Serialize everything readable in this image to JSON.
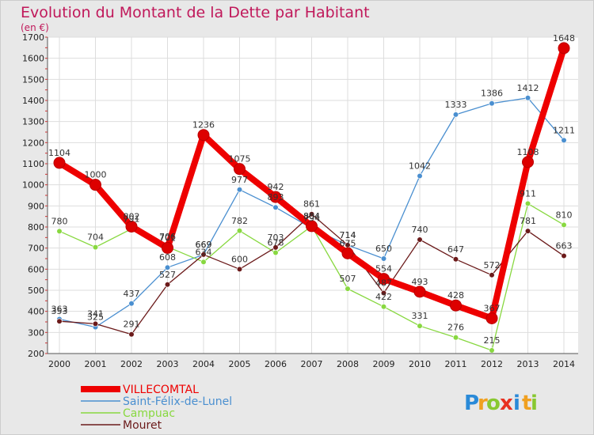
{
  "chart_data": {
    "type": "line",
    "title": "Evolution du Montant de la Dette par Habitant",
    "subtitle": "(en €)",
    "xlabel": "",
    "ylabel": "",
    "x": [
      "2000",
      "2001",
      "2002",
      "2003",
      "2004",
      "2005",
      "2006",
      "2007",
      "2008",
      "2009",
      "2010",
      "2011",
      "2012",
      "2013",
      "2014"
    ],
    "ylim": [
      200,
      1700
    ],
    "yticks": [
      200,
      300,
      400,
      500,
      600,
      700,
      800,
      900,
      1000,
      1100,
      1200,
      1300,
      1400,
      1500,
      1600,
      1700
    ],
    "grid": true,
    "legend_position": "bottom-left",
    "series": [
      {
        "name": "VILLECOMTAL",
        "color": "#ee0000",
        "values": [
          1104,
          1000,
          802,
          701,
          1236,
          1075,
          942,
          804,
          675,
          554,
          493,
          428,
          367,
          1108,
          1648
        ]
      },
      {
        "name": "Saint-Félix-de-Lunel",
        "color": "#4a8fd0",
        "values": [
          363,
          325,
          437,
          608,
          669,
          977,
          893,
          794,
          714,
          650,
          1042,
          1333,
          1386,
          1412,
          1211
        ]
      },
      {
        "name": "Campuac",
        "color": "#88d840",
        "values": [
          780,
          704,
          791,
          706,
          634,
          782,
          678,
          804,
          507,
          422,
          331,
          276,
          215,
          911,
          810
        ]
      },
      {
        "name": "Mouret",
        "color": "#6b1a1a",
        "values": [
          353,
          341,
          291,
          527,
          669,
          600,
          703,
          861,
          714,
          487,
          740,
          647,
          572,
          781,
          663
        ]
      }
    ],
    "data_labels": [
      [
        "1104",
        "1000",
        "802",
        "701",
        "1236",
        "1075",
        "942",
        "804",
        "675",
        "554",
        "493",
        "428",
        "367",
        "1108",
        "1648"
      ],
      [
        "363",
        "325",
        "437",
        "608",
        "669",
        "977",
        "893",
        "794",
        "714",
        "650",
        "1042",
        "1333",
        "1386",
        "1412",
        "1211"
      ],
      [
        "780",
        "704",
        "791",
        "706",
        "634",
        "782",
        "678",
        "804",
        "507",
        "422",
        "331",
        "276",
        "215",
        "911",
        "810"
      ],
      [
        "353",
        "341",
        "291",
        "527",
        "669",
        "600",
        "703",
        "861",
        "714",
        "487",
        "740",
        "647",
        "572",
        "781",
        "663"
      ]
    ]
  },
  "logo": {
    "letters": [
      "P",
      "r",
      "o",
      "x",
      "i",
      "t",
      "i"
    ],
    "colors": [
      "#2a8ad8",
      "#f0a020",
      "#88c830",
      "#e83020",
      "#2a8ad8",
      "#f0a020",
      "#88c830"
    ]
  }
}
